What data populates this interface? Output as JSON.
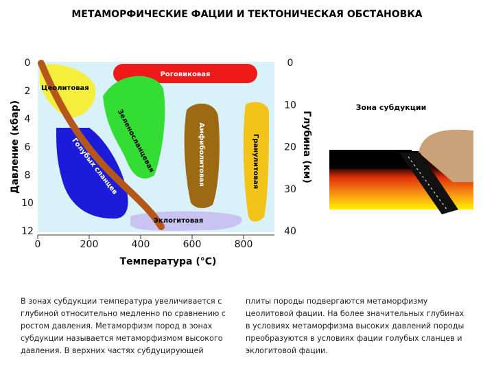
{
  "title": "МЕТАМОРФИЧЕСКИЕ ФАЦИИ И ТЕКТОНИЧЕСКАЯ ОБСТАНОВКА",
  "diagram": {
    "left_axis": {
      "label": "Давление (кбар)",
      "ticks": [
        0,
        2,
        4,
        6,
        8,
        10,
        12
      ]
    },
    "right_axis": {
      "label": "Глубина (км)",
      "ticks": [
        0,
        10,
        20,
        30,
        40
      ]
    },
    "bottom_axis": {
      "label": "Температура (°C)",
      "ticks": [
        0,
        200,
        400,
        600,
        800
      ]
    },
    "facies": [
      {
        "label": "Цеолитовая"
      },
      {
        "label": "Роговиковая"
      },
      {
        "label": "Зеленосланцевая"
      },
      {
        "label": "Голубых сланцев"
      },
      {
        "label": "Амфиболитовая"
      },
      {
        "label": "Гранулитовая"
      },
      {
        "label": "Эклогитовая"
      }
    ]
  },
  "inset": {
    "title": "Зона субдукции"
  },
  "text": {
    "columns": [
      "В зонах субдукции температура увеличивается с глубиной относительно медленно по сравнению с ростом давления. Метаморфизм пород в зонах субдукции называется метаморфизмом высокого давления. В верхних частях субдуцирующей",
      "плиты породы подвергаются метаморфизму цеолитовой фации. На более значительных глубинах в условиях метаморфизма высоких давлений породы преобразуются в условиях фации голубых сланцев и эклогитовой фации."
    ]
  }
}
